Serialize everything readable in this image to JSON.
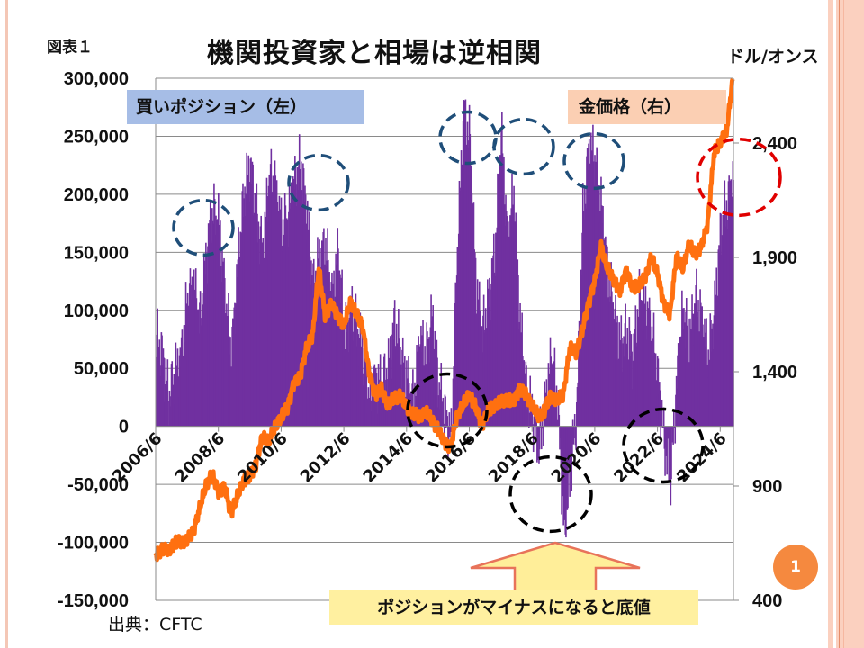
{
  "slide": {
    "figure_label": "図表１",
    "title": "機関投資家と相場は逆相関",
    "right_unit": "ドル/オンス",
    "legend_positions": "買いポジション（左）",
    "legend_gold": "金価格（右）",
    "source": "出典：CFTC",
    "callout_text": "ポジションがマイナスになると底値",
    "page_number": "1"
  },
  "colors": {
    "bars": "#7030a0",
    "gold_line": "#ff7010",
    "circle_blue": "#1f4e79",
    "circle_black": "#000000",
    "circle_red": "#e00000",
    "arrow_fill": "#ffee99",
    "arrow_stroke": "#e8735a"
  },
  "chart_data": {
    "type": "bar+line",
    "title": "機関投資家と相場は逆相関",
    "left_axis": {
      "label": "",
      "ylim": [
        -150000,
        300000
      ],
      "ticks": [
        "300,000",
        "250,000",
        "200,000",
        "150,000",
        "100,000",
        "50,000",
        "0",
        "-50,000",
        "-100,000",
        "-150,000"
      ],
      "tick_values": [
        300000,
        250000,
        200000,
        150000,
        100000,
        50000,
        0,
        -50000,
        -100000,
        -150000
      ]
    },
    "right_axis": {
      "label": "ドル/オンス",
      "ylim": [
        400,
        2680
      ],
      "ticks": [
        "2,400",
        "1,900",
        "1,400",
        "900",
        "400"
      ],
      "tick_values": [
        2400,
        1900,
        1400,
        900,
        400
      ]
    },
    "x_ticks": [
      "2006/6",
      "2008/6",
      "2010/6",
      "2012/6",
      "2014/6",
      "2016/6",
      "2018/6",
      "2020/6",
      "2022/6",
      "2024/6"
    ],
    "x_range": [
      2006.4,
      2024.9
    ],
    "grid": true,
    "series": [
      {
        "name": "買いポジション（左）",
        "type": "bar",
        "axis": "left",
        "x": [
          2006.4,
          2006.6,
          2006.8,
          2007.0,
          2007.2,
          2007.4,
          2007.6,
          2007.8,
          2008.0,
          2008.2,
          2008.4,
          2008.6,
          2008.8,
          2009.0,
          2009.2,
          2009.4,
          2009.6,
          2009.8,
          2010.0,
          2010.2,
          2010.4,
          2010.6,
          2010.8,
          2011.0,
          2011.2,
          2011.4,
          2011.6,
          2011.8,
          2012.0,
          2012.2,
          2012.4,
          2012.6,
          2012.8,
          2013.0,
          2013.2,
          2013.4,
          2013.6,
          2013.8,
          2014.0,
          2014.2,
          2014.4,
          2014.6,
          2014.8,
          2015.0,
          2015.2,
          2015.4,
          2015.6,
          2015.8,
          2016.0,
          2016.2,
          2016.4,
          2016.6,
          2016.8,
          2017.0,
          2017.2,
          2017.4,
          2017.6,
          2017.8,
          2018.0,
          2018.2,
          2018.4,
          2018.6,
          2018.8,
          2019.0,
          2019.2,
          2019.4,
          2019.6,
          2019.8,
          2020.0,
          2020.2,
          2020.4,
          2020.6,
          2020.8,
          2021.0,
          2021.2,
          2021.4,
          2021.6,
          2021.8,
          2022.0,
          2022.2,
          2022.4,
          2022.6,
          2022.8,
          2023.0,
          2023.2,
          2023.4,
          2023.6,
          2023.8,
          2024.0,
          2024.2,
          2024.4,
          2024.6,
          2024.8
        ],
        "values": [
          75000,
          60000,
          25000,
          45000,
          60000,
          110000,
          120000,
          90000,
          150000,
          185000,
          175000,
          110000,
          60000,
          140000,
          200000,
          225000,
          180000,
          150000,
          215000,
          205000,
          170000,
          180000,
          210000,
          225000,
          185000,
          120000,
          145000,
          155000,
          110000,
          150000,
          80000,
          100000,
          85000,
          60000,
          20000,
          40000,
          35000,
          50000,
          90000,
          60000,
          40000,
          20000,
          75000,
          60000,
          95000,
          35000,
          10000,
          -10000,
          150000,
          270000,
          245000,
          120000,
          80000,
          110000,
          150000,
          255000,
          160000,
          200000,
          90000,
          30000,
          10000,
          -20000,
          20000,
          60000,
          20000,
          -90000,
          -40000,
          10000,
          180000,
          240000,
          230000,
          185000,
          130000,
          95000,
          70000,
          80000,
          60000,
          110000,
          105000,
          80000,
          40000,
          -15000,
          -45000,
          40000,
          100000,
          75000,
          110000,
          90000,
          60000,
          100000,
          170000,
          190000,
          215000
        ]
      },
      {
        "name": "金価格（右）",
        "type": "line",
        "axis": "right",
        "x": [
          2006.4,
          2006.6,
          2006.8,
          2007.0,
          2007.2,
          2007.4,
          2007.6,
          2007.8,
          2008.0,
          2008.2,
          2008.4,
          2008.6,
          2008.8,
          2009.0,
          2009.2,
          2009.4,
          2009.6,
          2009.8,
          2010.0,
          2010.2,
          2010.4,
          2010.6,
          2010.8,
          2011.0,
          2011.2,
          2011.4,
          2011.6,
          2011.8,
          2012.0,
          2012.2,
          2012.4,
          2012.6,
          2012.8,
          2013.0,
          2013.2,
          2013.4,
          2013.6,
          2013.8,
          2014.0,
          2014.2,
          2014.4,
          2014.6,
          2014.8,
          2015.0,
          2015.2,
          2015.4,
          2015.6,
          2015.8,
          2016.0,
          2016.2,
          2016.4,
          2016.6,
          2016.8,
          2017.0,
          2017.2,
          2017.4,
          2017.6,
          2017.8,
          2018.0,
          2018.2,
          2018.4,
          2018.6,
          2018.8,
          2019.0,
          2019.2,
          2019.4,
          2019.6,
          2019.8,
          2020.0,
          2020.2,
          2020.4,
          2020.6,
          2020.8,
          2021.0,
          2021.2,
          2021.4,
          2021.6,
          2021.8,
          2022.0,
          2022.2,
          2022.4,
          2022.6,
          2022.8,
          2023.0,
          2023.2,
          2023.4,
          2023.6,
          2023.8,
          2024.0,
          2024.2,
          2024.4,
          2024.6,
          2024.8
        ],
        "values": [
          600,
          620,
          610,
          650,
          660,
          670,
          700,
          800,
          900,
          950,
          880,
          900,
          780,
          850,
          920,
          940,
          1000,
          1120,
          1100,
          1150,
          1200,
          1240,
          1350,
          1380,
          1500,
          1550,
          1850,
          1650,
          1700,
          1650,
          1600,
          1700,
          1650,
          1600,
          1400,
          1300,
          1320,
          1250,
          1280,
          1300,
          1250,
          1220,
          1200,
          1220,
          1190,
          1150,
          1100,
          1070,
          1200,
          1250,
          1300,
          1250,
          1170,
          1230,
          1250,
          1260,
          1280,
          1270,
          1330,
          1300,
          1250,
          1200,
          1230,
          1300,
          1280,
          1300,
          1500,
          1480,
          1580,
          1700,
          1800,
          1950,
          1850,
          1800,
          1750,
          1850,
          1770,
          1780,
          1800,
          1900,
          1830,
          1700,
          1650,
          1900,
          1850,
          1950,
          1920,
          1950,
          2050,
          2350,
          2400,
          2450,
          2680
        ]
      }
    ],
    "annotations": [
      {
        "type": "circle",
        "color": "blue",
        "near": "2008/6 peak"
      },
      {
        "type": "circle",
        "color": "blue",
        "near": "2011 peak"
      },
      {
        "type": "circle",
        "color": "blue",
        "near": "2016 peak"
      },
      {
        "type": "circle",
        "color": "blue",
        "near": "2017 peak"
      },
      {
        "type": "circle",
        "color": "blue",
        "near": "2020 peak"
      },
      {
        "type": "circle",
        "color": "black",
        "near": "2015 trough"
      },
      {
        "type": "circle",
        "color": "black",
        "near": "2019 trough"
      },
      {
        "type": "circle",
        "color": "black",
        "near": "2022 trough"
      },
      {
        "type": "circle",
        "color": "red",
        "near": "2024 gold high"
      }
    ]
  }
}
